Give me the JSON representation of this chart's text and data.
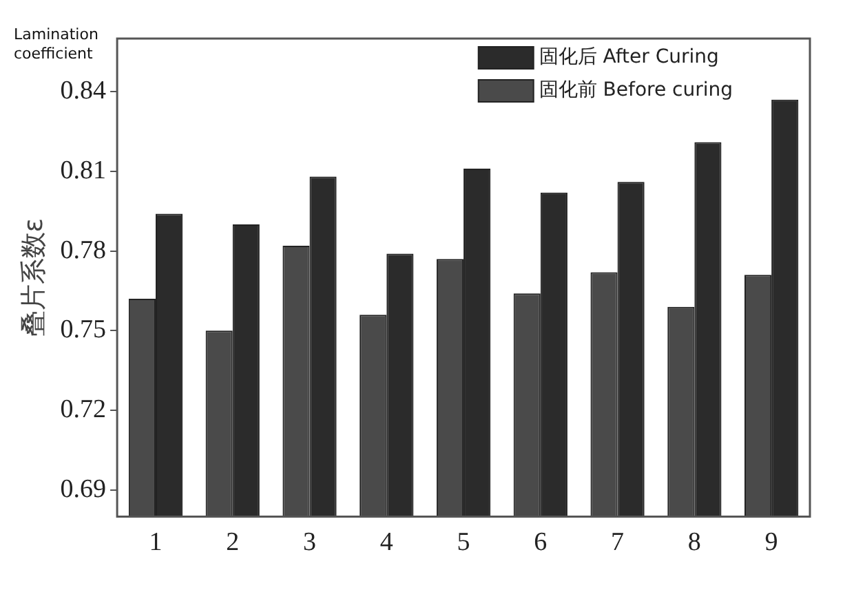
{
  "chart_data": {
    "type": "bar",
    "ylabel": "叠片系数ε",
    "annotations": [
      "Lamination coefficient"
    ],
    "categories": [
      "1",
      "2",
      "3",
      "4",
      "5",
      "6",
      "7",
      "8",
      "9"
    ],
    "series": [
      {
        "name": "固化前 Before curing",
        "color": "#4a4a4a",
        "values": [
          0.762,
          0.75,
          0.782,
          0.756,
          0.777,
          0.764,
          0.772,
          0.759,
          0.771
        ]
      },
      {
        "name": "固化后 After Curing",
        "color": "#2b2b2b",
        "values": [
          0.794,
          0.79,
          0.808,
          0.779,
          0.811,
          0.802,
          0.806,
          0.821,
          0.837
        ]
      }
    ],
    "ylim": [
      0.68,
      0.86
    ],
    "yticks": [
      0.69,
      0.72,
      0.75,
      0.78,
      0.81,
      0.84
    ],
    "legend": "top right",
    "grid": false
  }
}
